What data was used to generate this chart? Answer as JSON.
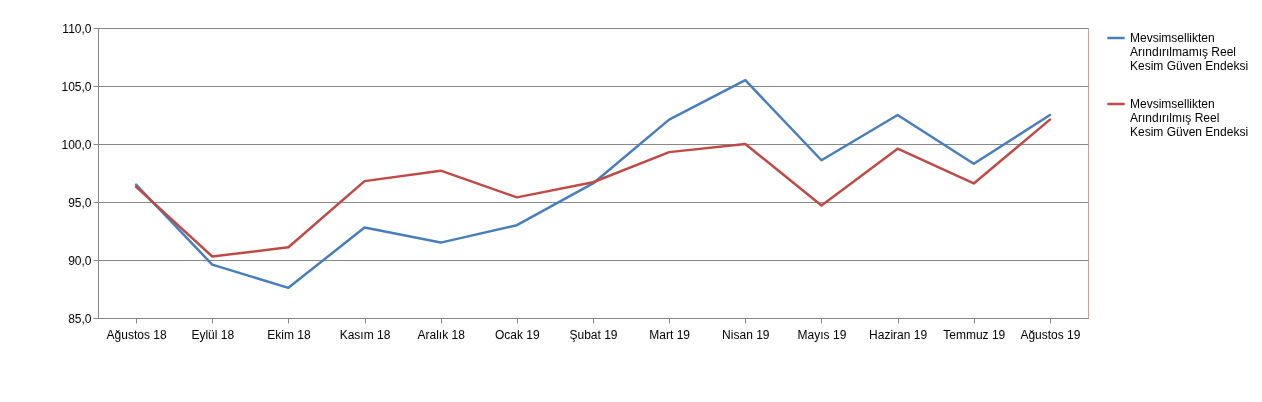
{
  "chart_data": {
    "type": "line",
    "categories": [
      "Ağustos 18",
      "Eylül 18",
      "Ekim 18",
      "Kasım 18",
      "Aralık 18",
      "Ocak 19",
      "Şubat 19",
      "Mart 19",
      "Nisan 19",
      "Mayıs 19",
      "Haziran 19",
      "Temmuz 19",
      "Ağustos 19"
    ],
    "series": [
      {
        "name": "Mevsimsellikten Arındırılmamış Reel Kesim Güven Endeksi",
        "color": "#4a7ebb",
        "values": [
          96.5,
          89.6,
          87.6,
          92.8,
          91.5,
          93.0,
          96.6,
          102.1,
          105.5,
          98.6,
          102.5,
          98.3,
          102.5
        ]
      },
      {
        "name": "Mevsimsellikten Arındırılmış Reel Kesim Güven Endeksi",
        "color": "#be4b48",
        "values": [
          96.3,
          90.3,
          91.1,
          96.8,
          97.7,
          95.4,
          96.7,
          99.3,
          100.0,
          94.7,
          99.6,
          96.6,
          102.1
        ]
      }
    ],
    "ylim": [
      85,
      110
    ],
    "yticks": [
      {
        "value": 85,
        "label": "85,0"
      },
      {
        "value": 90,
        "label": "90,0"
      },
      {
        "value": 95,
        "label": "95,0"
      },
      {
        "value": 100,
        "label": "100,0"
      },
      {
        "value": 105,
        "label": "105,0"
      },
      {
        "value": 110,
        "label": "110,0"
      }
    ],
    "grid": "y",
    "legend": "right",
    "marker": "none",
    "line_style": "solid"
  }
}
